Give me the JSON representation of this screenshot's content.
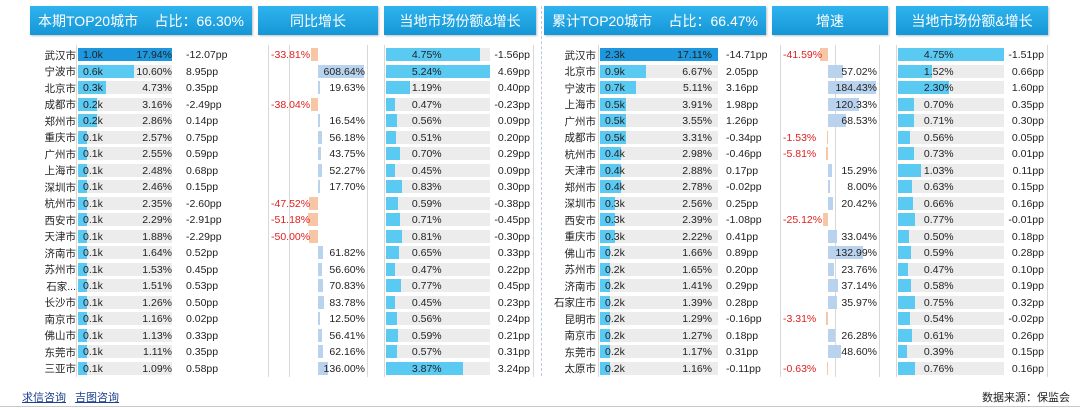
{
  "left": {
    "header_title": "本期TOP20城市",
    "header_share": "占比：66.30%",
    "header_yoy": "同比增长",
    "header_market": "当地市场份额&增长",
    "rows": [
      {
        "city": "武汉市",
        "value": "1.0k",
        "v": 1.0,
        "pct": "17.94%",
        "pp": "-12.07pp",
        "yoy": "-33.81%",
        "yoy_v": -33.81,
        "share": "4.75%",
        "share_v": 4.75,
        "growth": "-1.56pp"
      },
      {
        "city": "宁波市",
        "value": "0.6k",
        "v": 0.6,
        "pct": "10.60%",
        "pp": "8.95pp",
        "yoy": "608.64%",
        "yoy_v": 608.64,
        "share": "5.24%",
        "share_v": 5.24,
        "growth": "4.69pp"
      },
      {
        "city": "北京市",
        "value": "0.3k",
        "v": 0.3,
        "pct": "4.73%",
        "pp": "0.35pp",
        "yoy": "19.63%",
        "yoy_v": 19.63,
        "share": "1.19%",
        "share_v": 1.19,
        "growth": "0.40pp"
      },
      {
        "city": "成都市",
        "value": "0.2k",
        "v": 0.2,
        "pct": "3.16%",
        "pp": "-2.49pp",
        "yoy": "-38.04%",
        "yoy_v": -38.04,
        "share": "0.47%",
        "share_v": 0.47,
        "growth": "-0.23pp"
      },
      {
        "city": "郑州市",
        "value": "0.2k",
        "v": 0.2,
        "pct": "2.86%",
        "pp": "0.14pp",
        "yoy": "16.54%",
        "yoy_v": 16.54,
        "share": "0.56%",
        "share_v": 0.56,
        "growth": "0.09pp"
      },
      {
        "city": "重庆市",
        "value": "0.1k",
        "v": 0.1,
        "pct": "2.57%",
        "pp": "0.75pp",
        "yoy": "56.18%",
        "yoy_v": 56.18,
        "share": "0.51%",
        "share_v": 0.51,
        "growth": "0.20pp"
      },
      {
        "city": "广州市",
        "value": "0.1k",
        "v": 0.1,
        "pct": "2.55%",
        "pp": "0.59pp",
        "yoy": "43.75%",
        "yoy_v": 43.75,
        "share": "0.70%",
        "share_v": 0.7,
        "growth": "0.29pp"
      },
      {
        "city": "上海市",
        "value": "0.1k",
        "v": 0.1,
        "pct": "2.48%",
        "pp": "0.68pp",
        "yoy": "52.27%",
        "yoy_v": 52.27,
        "share": "0.45%",
        "share_v": 0.45,
        "growth": "0.09pp"
      },
      {
        "city": "深圳市",
        "value": "0.1k",
        "v": 0.1,
        "pct": "2.46%",
        "pp": "0.15pp",
        "yoy": "17.70%",
        "yoy_v": 17.7,
        "share": "0.83%",
        "share_v": 0.83,
        "growth": "0.30pp"
      },
      {
        "city": "杭州市",
        "value": "0.1k",
        "v": 0.1,
        "pct": "2.35%",
        "pp": "-2.60pp",
        "yoy": "-47.52%",
        "yoy_v": -47.52,
        "share": "0.59%",
        "share_v": 0.59,
        "growth": "-0.38pp"
      },
      {
        "city": "西安市",
        "value": "0.1k",
        "v": 0.1,
        "pct": "2.29%",
        "pp": "-2.91pp",
        "yoy": "-51.18%",
        "yoy_v": -51.18,
        "share": "0.71%",
        "share_v": 0.71,
        "growth": "-0.45pp"
      },
      {
        "city": "天津市",
        "value": "0.1k",
        "v": 0.1,
        "pct": "1.88%",
        "pp": "-2.29pp",
        "yoy": "-50.00%",
        "yoy_v": -50.0,
        "share": "0.81%",
        "share_v": 0.81,
        "growth": "-0.30pp"
      },
      {
        "city": "济南市",
        "value": "0.1k",
        "v": 0.1,
        "pct": "1.64%",
        "pp": "0.52pp",
        "yoy": "61.82%",
        "yoy_v": 61.82,
        "share": "0.65%",
        "share_v": 0.65,
        "growth": "0.33pp"
      },
      {
        "city": "苏州市",
        "value": "0.1k",
        "v": 0.1,
        "pct": "1.53%",
        "pp": "0.45pp",
        "yoy": "56.60%",
        "yoy_v": 56.6,
        "share": "0.47%",
        "share_v": 0.47,
        "growth": "0.22pp"
      },
      {
        "city": "石家...",
        "value": "0.1k",
        "v": 0.1,
        "pct": "1.51%",
        "pp": "0.53pp",
        "yoy": "70.83%",
        "yoy_v": 70.83,
        "share": "0.77%",
        "share_v": 0.77,
        "growth": "0.45pp"
      },
      {
        "city": "长沙市",
        "value": "0.1k",
        "v": 0.1,
        "pct": "1.26%",
        "pp": "0.50pp",
        "yoy": "83.78%",
        "yoy_v": 83.78,
        "share": "0.45%",
        "share_v": 0.45,
        "growth": "0.23pp"
      },
      {
        "city": "南京市",
        "value": "0.1k",
        "v": 0.1,
        "pct": "1.16%",
        "pp": "0.02pp",
        "yoy": "12.50%",
        "yoy_v": 12.5,
        "share": "0.56%",
        "share_v": 0.56,
        "growth": "0.24pp"
      },
      {
        "city": "佛山市",
        "value": "0.1k",
        "v": 0.1,
        "pct": "1.13%",
        "pp": "0.33pp",
        "yoy": "56.41%",
        "yoy_v": 56.41,
        "share": "0.59%",
        "share_v": 0.59,
        "growth": "0.21pp"
      },
      {
        "city": "东莞市",
        "value": "0.1k",
        "v": 0.1,
        "pct": "1.11%",
        "pp": "0.35pp",
        "yoy": "62.16%",
        "yoy_v": 62.16,
        "share": "0.57%",
        "share_v": 0.57,
        "growth": "0.31pp"
      },
      {
        "city": "三亚市",
        "value": "0.1k",
        "v": 0.1,
        "pct": "1.09%",
        "pp": "0.58pp",
        "yoy": "136.00%",
        "yoy_v": 136.0,
        "share": "3.87%",
        "share_v": 3.87,
        "growth": "3.24pp"
      }
    ]
  },
  "right": {
    "header_title": "累计TOP20城市",
    "header_share": "占比：66.47%",
    "header_speed": "增速",
    "header_market": "当地市场份额&增长",
    "rows": [
      {
        "city": "武汉市",
        "value": "2.3k",
        "v": 2.3,
        "pct": "17.11%",
        "pp": "-14.71pp",
        "yoy": "-41.59%",
        "yoy_v": -41.59,
        "share": "4.75%",
        "share_v": 4.75,
        "growth": "-1.51pp"
      },
      {
        "city": "北京市",
        "value": "0.9k",
        "v": 0.9,
        "pct": "6.67%",
        "pp": "2.05pp",
        "yoy": "57.02%",
        "yoy_v": 57.02,
        "share": "1.52%",
        "share_v": 1.52,
        "growth": "0.66pp"
      },
      {
        "city": "宁波市",
        "value": "0.7k",
        "v": 0.7,
        "pct": "5.11%",
        "pp": "3.16pp",
        "yoy": "184.43%",
        "yoy_v": 184.43,
        "share": "2.30%",
        "share_v": 2.3,
        "growth": "1.60pp"
      },
      {
        "city": "上海市",
        "value": "0.5k",
        "v": 0.5,
        "pct": "3.91%",
        "pp": "1.98pp",
        "yoy": "120.33%",
        "yoy_v": 120.33,
        "share": "0.70%",
        "share_v": 0.7,
        "growth": "0.35pp"
      },
      {
        "city": "广州市",
        "value": "0.5k",
        "v": 0.5,
        "pct": "3.55%",
        "pp": "1.26pp",
        "yoy": "68.53%",
        "yoy_v": 68.53,
        "share": "0.71%",
        "share_v": 0.71,
        "growth": "0.30pp"
      },
      {
        "city": "成都市",
        "value": "0.5k",
        "v": 0.5,
        "pct": "3.31%",
        "pp": "-0.34pp",
        "yoy": "-1.53%",
        "yoy_v": -1.53,
        "share": "0.56%",
        "share_v": 0.56,
        "growth": "0.05pp"
      },
      {
        "city": "杭州市",
        "value": "0.4k",
        "v": 0.4,
        "pct": "2.98%",
        "pp": "-0.46pp",
        "yoy": "-5.81%",
        "yoy_v": -5.81,
        "share": "0.73%",
        "share_v": 0.73,
        "growth": "0.01pp"
      },
      {
        "city": "天津市",
        "value": "0.4k",
        "v": 0.4,
        "pct": "2.88%",
        "pp": "0.17pp",
        "yoy": "15.29%",
        "yoy_v": 15.29,
        "share": "1.03%",
        "share_v": 1.03,
        "growth": "0.11pp"
      },
      {
        "city": "郑州市",
        "value": "0.4k",
        "v": 0.4,
        "pct": "2.78%",
        "pp": "-0.02pp",
        "yoy": "8.00%",
        "yoy_v": 8.0,
        "share": "0.63%",
        "share_v": 0.63,
        "growth": "0.15pp"
      },
      {
        "city": "深圳市",
        "value": "0.3k",
        "v": 0.3,
        "pct": "2.56%",
        "pp": "0.25pp",
        "yoy": "20.42%",
        "yoy_v": 20.42,
        "share": "0.66%",
        "share_v": 0.66,
        "growth": "0.16pp"
      },
      {
        "city": "西安市",
        "value": "0.3k",
        "v": 0.3,
        "pct": "2.39%",
        "pp": "-1.08pp",
        "yoy": "-25.12%",
        "yoy_v": -25.12,
        "share": "0.77%",
        "share_v": 0.77,
        "growth": "-0.01pp"
      },
      {
        "city": "重庆市",
        "value": "0.3k",
        "v": 0.3,
        "pct": "2.22%",
        "pp": "0.41pp",
        "yoy": "33.04%",
        "yoy_v": 33.04,
        "share": "0.50%",
        "share_v": 0.5,
        "growth": "0.18pp"
      },
      {
        "city": "佛山市",
        "value": "0.2k",
        "v": 0.2,
        "pct": "1.66%",
        "pp": "0.89pp",
        "yoy": "132.99%",
        "yoy_v": 132.99,
        "share": "0.59%",
        "share_v": 0.59,
        "growth": "0.28pp"
      },
      {
        "city": "苏州市",
        "value": "0.2k",
        "v": 0.2,
        "pct": "1.65%",
        "pp": "0.20pp",
        "yoy": "23.76%",
        "yoy_v": 23.76,
        "share": "0.47%",
        "share_v": 0.47,
        "growth": "0.10pp"
      },
      {
        "city": "济南市",
        "value": "0.2k",
        "v": 0.2,
        "pct": "1.41%",
        "pp": "0.29pp",
        "yoy": "37.14%",
        "yoy_v": 37.14,
        "share": "0.58%",
        "share_v": 0.58,
        "growth": "0.19pp"
      },
      {
        "city": "石家庄市",
        "value": "0.2k",
        "v": 0.2,
        "pct": "1.39%",
        "pp": "0.28pp",
        "yoy": "35.97%",
        "yoy_v": 35.97,
        "share": "0.75%",
        "share_v": 0.75,
        "growth": "0.32pp"
      },
      {
        "city": "昆明市",
        "value": "0.2k",
        "v": 0.2,
        "pct": "1.29%",
        "pp": "-0.16pp",
        "yoy": "-3.31%",
        "yoy_v": -3.31,
        "share": "0.54%",
        "share_v": 0.54,
        "growth": "-0.02pp"
      },
      {
        "city": "南京市",
        "value": "0.2k",
        "v": 0.2,
        "pct": "1.27%",
        "pp": "0.18pp",
        "yoy": "26.28%",
        "yoy_v": 26.28,
        "share": "0.61%",
        "share_v": 0.61,
        "growth": "0.26pp"
      },
      {
        "city": "东莞市",
        "value": "0.2k",
        "v": 0.2,
        "pct": "1.17%",
        "pp": "0.31pp",
        "yoy": "48.60%",
        "yoy_v": 48.6,
        "share": "0.39%",
        "share_v": 0.39,
        "growth": "0.15pp"
      },
      {
        "city": "太原市",
        "value": "0.2k",
        "v": 0.2,
        "pct": "1.16%",
        "pp": "-0.11pp",
        "yoy": "-0.63%",
        "yoy_v": -0.63,
        "share": "0.76%",
        "share_v": 0.76,
        "growth": "0.16pp"
      }
    ]
  },
  "footer": {
    "link1": "求信咨询",
    "link2": "吉图咨询",
    "source": "数据来源：保监会"
  },
  "colors": {
    "header": "#1596d6",
    "neg": "#e02020"
  }
}
